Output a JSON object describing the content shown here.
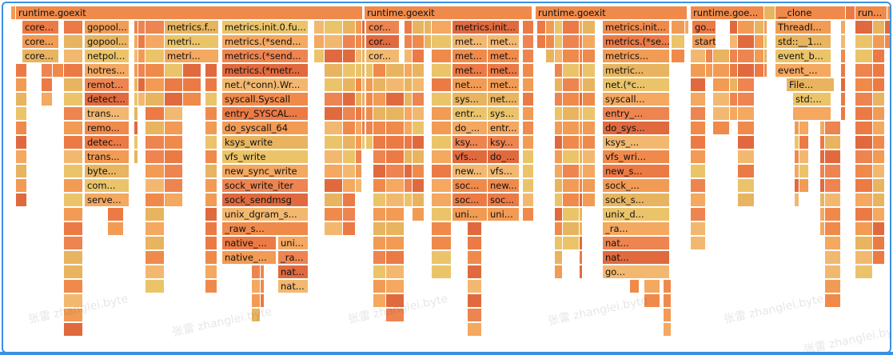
{
  "flamegraph": {
    "top_labels": [
      "runtime.goexit",
      "runtime.goexit",
      "runtime.goexit",
      "runtime.goe...",
      "__clone",
      "run..."
    ],
    "frame_labels": [
      "core...",
      "core...",
      "core...",
      "gopool...",
      "gopool...",
      "netpol...",
      "hotres...",
      "remot...",
      "detect...",
      "trans...",
      "remo...",
      "detec...",
      "trans...",
      "byte...",
      "com...",
      "serve...",
      "metrics.f...",
      "metri...",
      "metri...",
      "metrics.init.0.fu...",
      "metrics.(*send...",
      "metrics.(*send...",
      "metrics.(*metr...",
      "net.(*conn).Wr...",
      "syscall.Syscall",
      "entry_SYSCAL...",
      "do_syscall_64",
      "ksys_write",
      "vfs_write",
      "new_sync_write",
      "sock_write_iter",
      "sock_sendmsg",
      "unix_dgram_s...",
      "_raw_s...",
      "native_...",
      "native_...",
      "uni...",
      "_ra...",
      "nat...",
      "nat...",
      "cor...",
      "cor...",
      "cor...",
      "metrics.init...",
      "met...",
      "met...",
      "met...",
      "net....",
      "sys...",
      "entr...",
      "do_...",
      "ksy...",
      "vfs...",
      "new...",
      "soc...",
      "soc...",
      "uni...",
      "met...",
      "met...",
      "met...",
      "met...",
      "net....",
      "sys...",
      "entr...",
      "ksy...",
      "do_...",
      "vfs...",
      "new...",
      "soc...",
      "uni...",
      "metrics.init...",
      "metrics.(*se...",
      "metrics...",
      "metric...",
      "net.(*c...",
      "syscall...",
      "entry_...",
      "do_sys...",
      "ksys_...",
      "vfs_wri...",
      "new_s...",
      "sock_...",
      "sock_s...",
      "unix_d...",
      "_ra...",
      "nat...",
      "nat...",
      "go...",
      "go...",
      "start_thr...",
      "ThreadI...",
      "std::__1...",
      "event_b...",
      "event_...",
      "File...",
      "std:..."
    ],
    "watermark": "张雷 zhanglei.byte",
    "colors": {
      "root": "#e8a15a",
      "palette": [
        "#f08a4b",
        "#ec7a45",
        "#f29b54",
        "#e8b460",
        "#ebc46a",
        "#f4a860",
        "#ee8450",
        "#e06a3e",
        "#f3b870"
      ],
      "selection_border": "#3b8fe0"
    }
  }
}
